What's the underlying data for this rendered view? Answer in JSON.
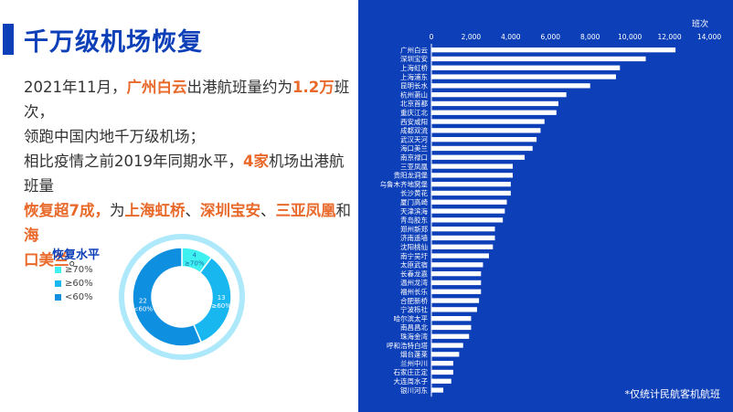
{
  "title": "千万级机场恢复",
  "paragraph": [
    [
      {
        "t": "2021年11月，",
        "h": false
      },
      {
        "t": "广州白云",
        "h": true
      },
      {
        "t": "出港航班量约为",
        "h": false
      },
      {
        "t": "1.2万",
        "h": true
      },
      {
        "t": "班次，",
        "h": false
      }
    ],
    [
      {
        "t": "领跑中国内地千万级机场；",
        "h": false
      }
    ],
    [
      {
        "t": "相比疫情之前2019年同期水平，",
        "h": false
      },
      {
        "t": "4家",
        "h": true
      },
      {
        "t": "机场出港航班量",
        "h": false
      }
    ],
    [
      {
        "t": "恢复超7成，",
        "h": true
      },
      {
        "t": "为",
        "h": false
      },
      {
        "t": "上海虹桥",
        "h": true
      },
      {
        "t": "、",
        "h": false
      },
      {
        "t": "深圳宝安",
        "h": true
      },
      {
        "t": "、",
        "h": false
      },
      {
        "t": "三亚凤凰",
        "h": true
      },
      {
        "t": "和",
        "h": false
      },
      {
        "t": "海",
        "h": true
      }
    ],
    [
      {
        "t": "口美兰",
        "h": true
      },
      {
        "t": "。",
        "h": false
      }
    ]
  ],
  "donut": {
    "legend_title": "恢复水平",
    "legend": [
      {
        "label": "≥70%",
        "color": "#3ef0f0"
      },
      {
        "label": "≥60%",
        "color": "#19b7f0"
      },
      {
        "label": "<60%",
        "color": "#0f8fe0"
      }
    ],
    "slices": [
      {
        "count": "4",
        "label": "≥70%",
        "value": 4,
        "color": "#3ef0f0"
      },
      {
        "count": "13",
        "label": "≥60%",
        "value": 13,
        "color": "#19b7f0"
      },
      {
        "count": "22",
        "label": "<60%",
        "value": 22,
        "color": "#0f8fe0"
      }
    ]
  },
  "chart_data": {
    "type": "bar",
    "orientation": "horizontal",
    "unit_label": "班次",
    "xlim": [
      0,
      14000
    ],
    "xticks": [
      "0",
      "2,000",
      "4,000",
      "6,000",
      "8,000",
      "10,000",
      "12,000",
      "14,000"
    ],
    "categories": [
      "广州白云",
      "深圳宝安",
      "上海虹桥",
      "上海浦东",
      "昆明长水",
      "杭州萧山",
      "北京首都",
      "重庆江北",
      "西安咸阳",
      "成都双流",
      "武汉天河",
      "海口美兰",
      "南京禄口",
      "三亚凤凰",
      "贵阳龙洞堡",
      "乌鲁木齐地窝堡",
      "长沙黄花",
      "厦门高崎",
      "天津滨海",
      "青岛胶东",
      "郑州新郑",
      "济南遥墙",
      "沈阳桃仙",
      "南宁吴圩",
      "太原武宿",
      "长春龙嘉",
      "温州龙湾",
      "福州长乐",
      "合肥新桥",
      "宁波栎社",
      "哈尔滨太平",
      "南昌昌北",
      "珠海金湾",
      "呼和浩特白塔",
      "烟台蓬莱",
      "兰州中川",
      "石家庄正定",
      "大连周水子",
      "银川河东"
    ],
    "values": [
      12300,
      10800,
      9500,
      9300,
      8000,
      6800,
      6400,
      6300,
      5700,
      5500,
      5300,
      5100,
      4700,
      4100,
      4100,
      4000,
      4000,
      3800,
      3700,
      3600,
      3200,
      3200,
      3100,
      2900,
      2600,
      2500,
      2500,
      2500,
      2400,
      2300,
      2000,
      2000,
      1900,
      1600,
      1400,
      1100,
      1100,
      1000,
      600
    ],
    "footnote": "*仅统计民航客机航班"
  }
}
